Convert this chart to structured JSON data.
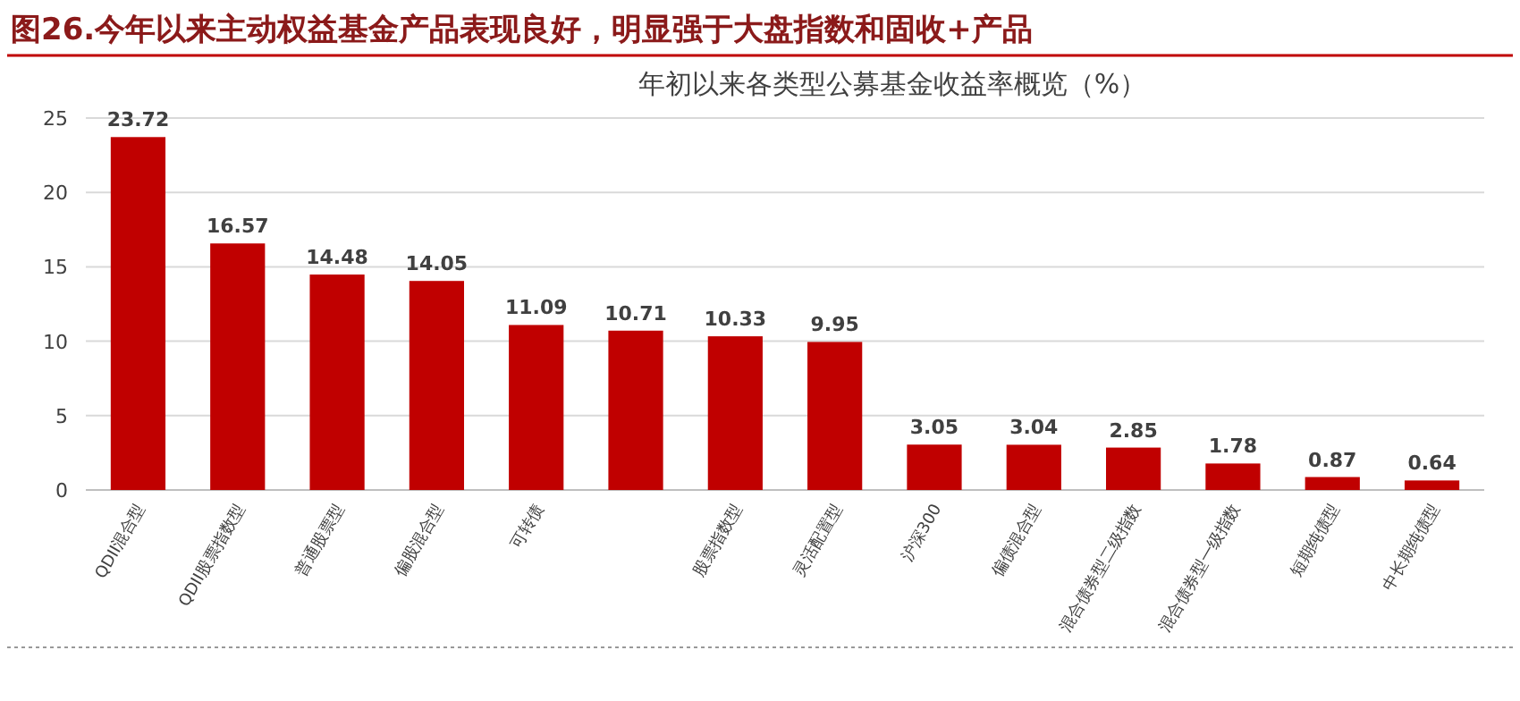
{
  "chart_data": {
    "type": "bar",
    "title": "图26.今年以来主动权益基金产品表现良好，明显强于大盘指数和固收+产品",
    "subtitle": "年初以来各类型公募基金收益率概览（%）",
    "categories": [
      "QDII混合型",
      "QDII股票指数型",
      "普通股票型",
      "偏股混合型",
      "可转债",
      null,
      "股票指数型",
      "灵活配置型",
      "沪深300",
      "偏债混合型",
      "混合债券型二级指数",
      "混合债券型一级指数",
      "短期纯债型",
      "中长期纯债型"
    ],
    "values": [
      23.72,
      16.57,
      14.48,
      14.05,
      11.09,
      10.71,
      10.33,
      9.95,
      3.05,
      3.04,
      2.85,
      1.78,
      0.87,
      0.64
    ],
    "color": "#c00000",
    "ylim": [
      0,
      25
    ],
    "yticks": [
      0,
      5,
      10,
      15,
      20,
      25
    ],
    "grid": "y",
    "data_labels": true
  }
}
